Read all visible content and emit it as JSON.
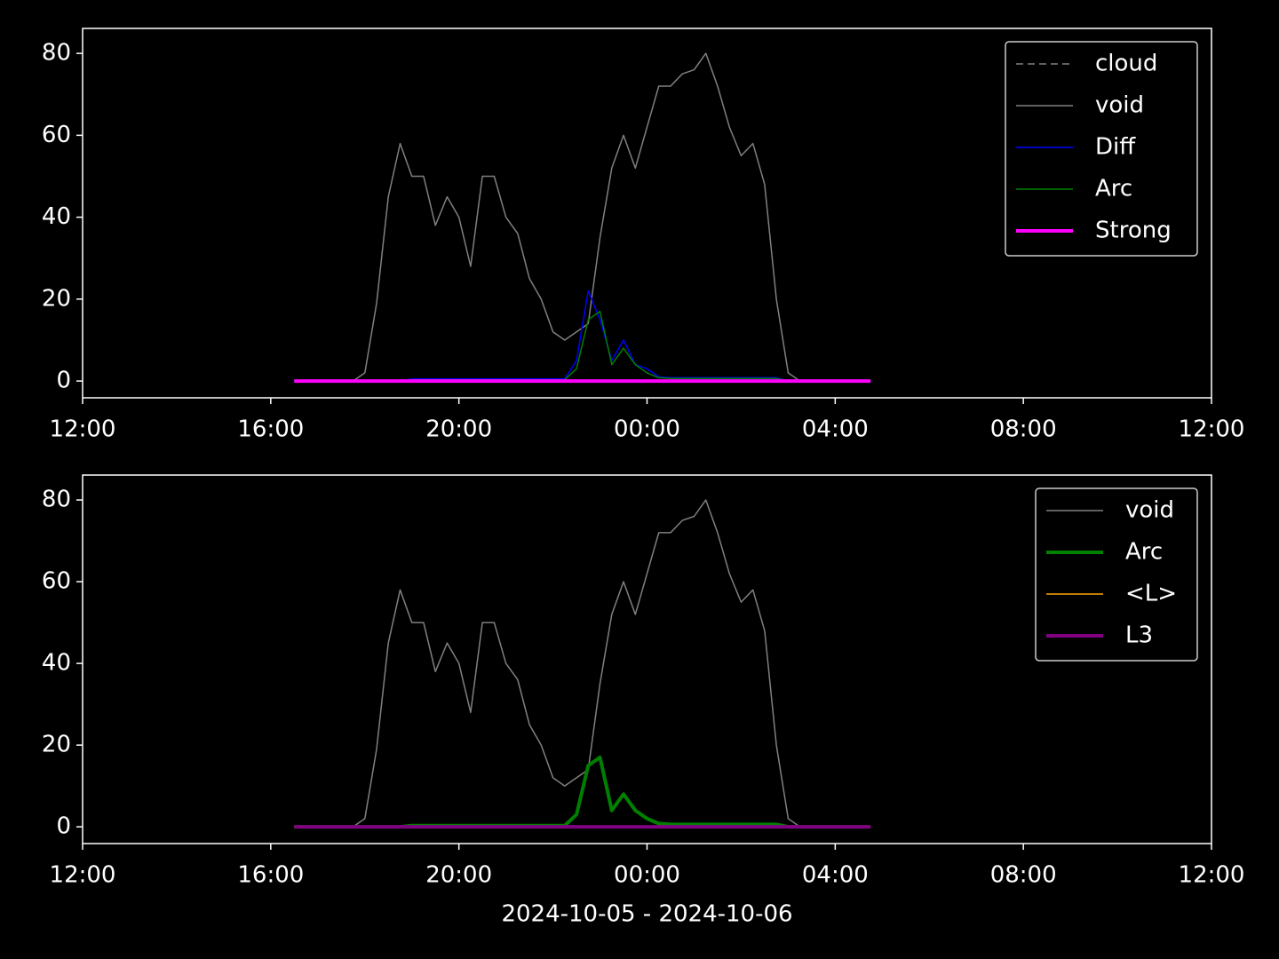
{
  "chart_data": [
    {
      "type": "line",
      "legend": "upper right",
      "x": [
        4.5,
        4.75,
        5,
        5.25,
        5.5,
        5.75,
        6,
        6.25,
        6.5,
        6.75,
        7,
        7.25,
        7.5,
        7.75,
        8,
        8.25,
        8.5,
        8.75,
        9,
        9.25,
        9.5,
        9.75,
        10,
        10.25,
        10.5,
        10.75,
        11,
        11.25,
        11.5,
        11.75,
        12,
        12.25,
        12.5,
        12.75,
        13,
        13.25,
        13.5,
        13.75,
        14,
        14.25,
        14.5,
        14.75,
        15,
        15.25,
        15.5,
        15.75,
        16,
        16.25,
        16.5,
        16.75
      ],
      "xlim": [
        0,
        24
      ],
      "xticks": [
        {
          "value": 0,
          "label": "12:00"
        },
        {
          "value": 4,
          "label": "16:00"
        },
        {
          "value": 8,
          "label": "20:00"
        },
        {
          "value": 12,
          "label": "00:00"
        },
        {
          "value": 16,
          "label": "04:00"
        },
        {
          "value": 20,
          "label": "08:00"
        },
        {
          "value": 24,
          "label": "12:00"
        }
      ],
      "ylim": [
        -4.1,
        86.1
      ],
      "yticks": [
        0,
        20,
        40,
        60,
        80
      ],
      "series": [
        {
          "name": "cloud",
          "color": "#808080",
          "linestyle": "dashed",
          "linewidth": 1.5,
          "values": [
            0,
            0,
            0,
            0,
            0,
            0,
            0,
            0,
            0,
            0,
            0,
            0,
            0,
            0,
            0,
            0,
            0,
            0,
            0,
            0,
            0,
            0,
            0,
            0,
            0,
            0,
            0,
            0,
            0,
            0,
            0,
            0,
            0,
            0,
            0,
            0,
            0,
            0,
            0,
            0,
            0,
            0,
            0,
            0,
            0,
            0,
            0,
            0,
            0,
            0
          ]
        },
        {
          "name": "void",
          "color": "#808080",
          "linestyle": "solid",
          "linewidth": 1.5,
          "values": [
            0,
            0,
            0,
            0,
            0,
            0,
            2,
            19,
            45,
            58,
            50,
            50,
            38,
            45,
            40,
            28,
            50,
            50,
            40,
            36,
            25,
            20,
            12,
            10,
            12,
            14,
            35,
            52,
            60,
            52,
            62,
            72,
            72,
            75,
            76,
            80,
            72,
            62,
            55,
            58,
            48,
            20,
            2,
            0,
            0,
            0,
            0,
            0,
            0,
            0
          ]
        },
        {
          "name": "Diff",
          "color": "#0000ff",
          "linestyle": "solid",
          "linewidth": 1.5,
          "values": [
            0,
            0,
            0,
            0,
            0,
            0,
            0,
            0,
            0,
            0,
            0.5,
            0.5,
            0.5,
            0.5,
            0.5,
            0.5,
            0.5,
            0.5,
            0.5,
            0.5,
            0.5,
            0.5,
            0.5,
            0.5,
            5,
            22,
            15,
            5,
            10,
            4,
            3,
            1,
            0.8,
            0.8,
            0.8,
            0.8,
            0.8,
            0.8,
            0.8,
            0.8,
            0.8,
            0.8,
            0,
            0,
            0,
            0,
            0,
            0,
            0,
            0
          ]
        },
        {
          "name": "Arc",
          "color": "#008000",
          "linestyle": "solid",
          "linewidth": 1.5,
          "values": [
            0,
            0,
            0,
            0,
            0,
            0,
            0,
            0,
            0,
            0,
            0.3,
            0.3,
            0.3,
            0.3,
            0.3,
            0.3,
            0.3,
            0.3,
            0.3,
            0.3,
            0.3,
            0.3,
            0.3,
            0.3,
            3,
            15,
            17,
            4,
            8,
            4,
            2,
            0.8,
            0.6,
            0.6,
            0.6,
            0.6,
            0.6,
            0.6,
            0.6,
            0.6,
            0.6,
            0.6,
            0,
            0,
            0,
            0,
            0,
            0,
            0,
            0
          ]
        },
        {
          "name": "Strong",
          "color": "#ff00ff",
          "linestyle": "solid",
          "linewidth": 4,
          "values": [
            0,
            0,
            0,
            0,
            0,
            0,
            0,
            0,
            0,
            0,
            0,
            0,
            0,
            0,
            0,
            0,
            0,
            0,
            0,
            0,
            0,
            0,
            0,
            0,
            0,
            0,
            0,
            0,
            0,
            0,
            0,
            0,
            0,
            0,
            0,
            0,
            0,
            0,
            0,
            0,
            0,
            0,
            0,
            0,
            0,
            0,
            0,
            0,
            0,
            0
          ]
        }
      ]
    },
    {
      "type": "line",
      "legend": "upper right",
      "xlabel": "2024-10-05 - 2024-10-06",
      "x": [
        4.5,
        4.75,
        5,
        5.25,
        5.5,
        5.75,
        6,
        6.25,
        6.5,
        6.75,
        7,
        7.25,
        7.5,
        7.75,
        8,
        8.25,
        8.5,
        8.75,
        9,
        9.25,
        9.5,
        9.75,
        10,
        10.25,
        10.5,
        10.75,
        11,
        11.25,
        11.5,
        11.75,
        12,
        12.25,
        12.5,
        12.75,
        13,
        13.25,
        13.5,
        13.75,
        14,
        14.25,
        14.5,
        14.75,
        15,
        15.25,
        15.5,
        15.75,
        16,
        16.25,
        16.5,
        16.75
      ],
      "xlim": [
        0,
        24
      ],
      "xticks": [
        {
          "value": 0,
          "label": "12:00"
        },
        {
          "value": 4,
          "label": "16:00"
        },
        {
          "value": 8,
          "label": "20:00"
        },
        {
          "value": 12,
          "label": "00:00"
        },
        {
          "value": 16,
          "label": "04:00"
        },
        {
          "value": 20,
          "label": "08:00"
        },
        {
          "value": 24,
          "label": "12:00"
        }
      ],
      "ylim": [
        -4.1,
        86.1
      ],
      "yticks": [
        0,
        20,
        40,
        60,
        80
      ],
      "series": [
        {
          "name": "void",
          "color": "#808080",
          "linestyle": "solid",
          "linewidth": 1.5,
          "values": [
            0,
            0,
            0,
            0,
            0,
            0,
            2,
            19,
            45,
            58,
            50,
            50,
            38,
            45,
            40,
            28,
            50,
            50,
            40,
            36,
            25,
            20,
            12,
            10,
            12,
            14,
            35,
            52,
            60,
            52,
            62,
            72,
            72,
            75,
            76,
            80,
            72,
            62,
            55,
            58,
            48,
            20,
            2,
            0,
            0,
            0,
            0,
            0,
            0,
            0
          ]
        },
        {
          "name": "Arc",
          "color": "#008000",
          "linestyle": "solid",
          "linewidth": 4,
          "values": [
            0,
            0,
            0,
            0,
            0,
            0,
            0,
            0,
            0,
            0,
            0.3,
            0.3,
            0.3,
            0.3,
            0.3,
            0.3,
            0.3,
            0.3,
            0.3,
            0.3,
            0.3,
            0.3,
            0.3,
            0.3,
            3,
            15,
            17,
            4,
            8,
            4,
            2,
            0.8,
            0.6,
            0.6,
            0.6,
            0.6,
            0.6,
            0.6,
            0.6,
            0.6,
            0.6,
            0.6,
            0,
            0,
            0,
            0,
            0,
            0,
            0,
            0
          ]
        },
        {
          "name": "<L>",
          "color": "#ffa500",
          "linestyle": "solid",
          "linewidth": 1.5,
          "values": [
            0,
            0,
            0,
            0,
            0,
            0,
            0,
            0,
            0,
            0,
            0,
            0,
            0,
            0,
            0,
            0,
            0,
            0,
            0,
            0,
            0,
            0,
            0,
            0,
            0,
            0,
            0,
            0,
            0,
            0,
            0,
            0,
            0,
            0,
            0,
            0,
            0,
            0,
            0,
            0,
            0,
            0,
            0,
            0,
            0,
            0,
            0,
            0,
            0,
            0
          ]
        },
        {
          "name": "L3",
          "color": "#800080",
          "linestyle": "solid",
          "linewidth": 4,
          "values": [
            0,
            0,
            0,
            0,
            0,
            0,
            0,
            0,
            0,
            0,
            0,
            0,
            0,
            0,
            0,
            0,
            0,
            0,
            0,
            0,
            0,
            0,
            0,
            0,
            0,
            0,
            0,
            0,
            0,
            0,
            0,
            0,
            0,
            0,
            0,
            0,
            0,
            0,
            0,
            0,
            0,
            0,
            0,
            0,
            0,
            0,
            0,
            0,
            0,
            0
          ]
        }
      ]
    }
  ]
}
